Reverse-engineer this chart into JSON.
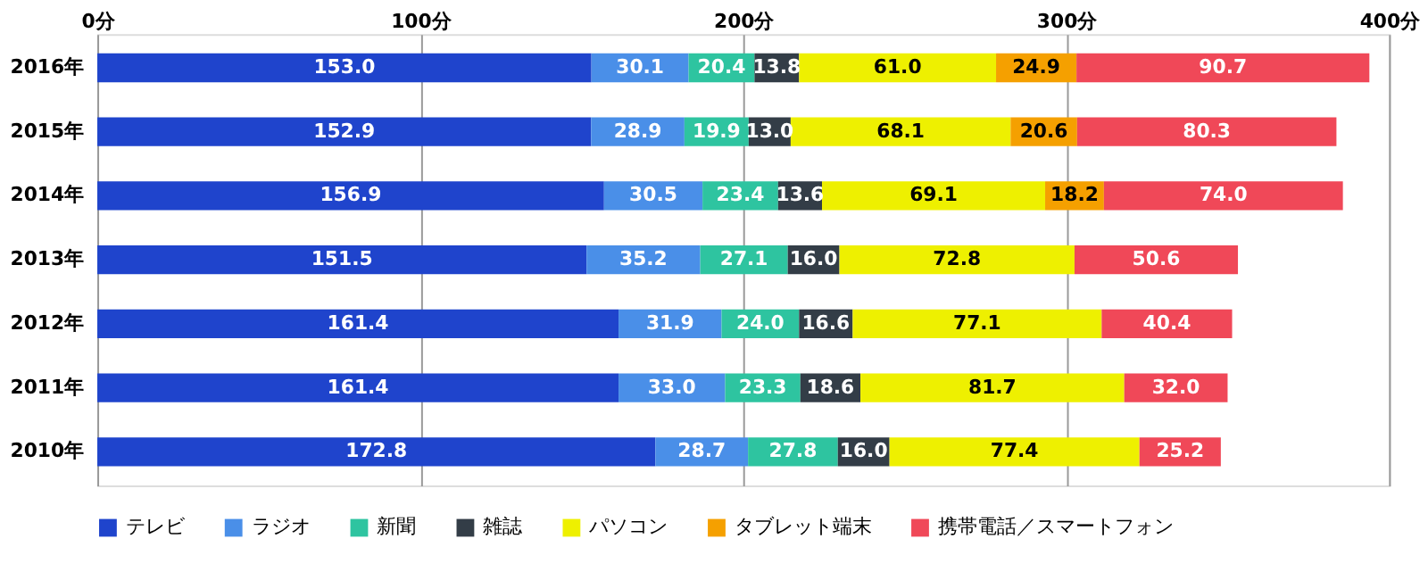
{
  "chart_data": {
    "type": "bar",
    "orientation": "horizontal",
    "stacked": true,
    "grid": "x",
    "legend": "bottom",
    "categories": [
      "2016年",
      "2015年",
      "2014年",
      "2013年",
      "2012年",
      "2011年",
      "2010年"
    ],
    "xlim": [
      0,
      400
    ],
    "xticks": [
      {
        "value": 0,
        "label": "0分"
      },
      {
        "value": 100,
        "label": "100分"
      },
      {
        "value": 200,
        "label": "200分"
      },
      {
        "value": 300,
        "label": "300分"
      },
      {
        "value": 400,
        "label": "400分"
      }
    ],
    "series": [
      {
        "name": "テレビ",
        "color": "#1f44cc",
        "values": [
          153.0,
          152.9,
          156.9,
          151.5,
          161.4,
          161.4,
          172.8
        ],
        "value_labels": [
          "153.0",
          "152.9",
          "156.9",
          "151.5",
          "161.4",
          "161.4",
          "172.8"
        ]
      },
      {
        "name": "ラジオ",
        "color": "#4a8fe8",
        "values": [
          30.1,
          28.9,
          30.5,
          35.2,
          31.9,
          33.0,
          28.7
        ],
        "value_labels": [
          "30.1",
          "28.9",
          "30.5",
          "35.2",
          "31.9",
          "33.0",
          "28.7"
        ]
      },
      {
        "name": "新聞",
        "color": "#2ec4a0",
        "values": [
          20.4,
          19.9,
          23.4,
          27.1,
          24.0,
          23.3,
          27.8
        ],
        "value_labels": [
          "20.4",
          "19.9",
          "23.4",
          "27.1",
          "24.0",
          "23.3",
          "27.8"
        ]
      },
      {
        "name": "雑誌",
        "color": "#333d47",
        "values": [
          13.8,
          13.0,
          13.6,
          16.0,
          16.6,
          18.6,
          16.0
        ],
        "value_labels": [
          "13.8",
          "13.0",
          "13.6",
          "16.0",
          "16.6",
          "18.6",
          "16.0"
        ]
      },
      {
        "name": "パソコン",
        "color": "#eef000",
        "values": [
          61.0,
          68.1,
          69.1,
          72.8,
          77.1,
          81.7,
          77.4
        ],
        "value_labels": [
          "61.0",
          "68.1",
          "69.1",
          "72.8",
          "77.1",
          "81.7",
          "77.4"
        ]
      },
      {
        "name": "タブレット端末",
        "color": "#f5a000",
        "values": [
          24.9,
          20.6,
          18.2,
          null,
          null,
          null,
          null
        ],
        "value_labels": [
          "24.9",
          "20.6",
          "18.2",
          null,
          null,
          null,
          null
        ]
      },
      {
        "name": "携帯電話／スマートフォン",
        "color": "#f04858",
        "values": [
          90.7,
          80.3,
          74.0,
          50.6,
          40.4,
          32.0,
          25.2
        ],
        "value_labels": [
          "90.7",
          "80.3",
          "74.0",
          "50.6",
          "40.4",
          "32.0",
          "25.2"
        ]
      }
    ]
  }
}
